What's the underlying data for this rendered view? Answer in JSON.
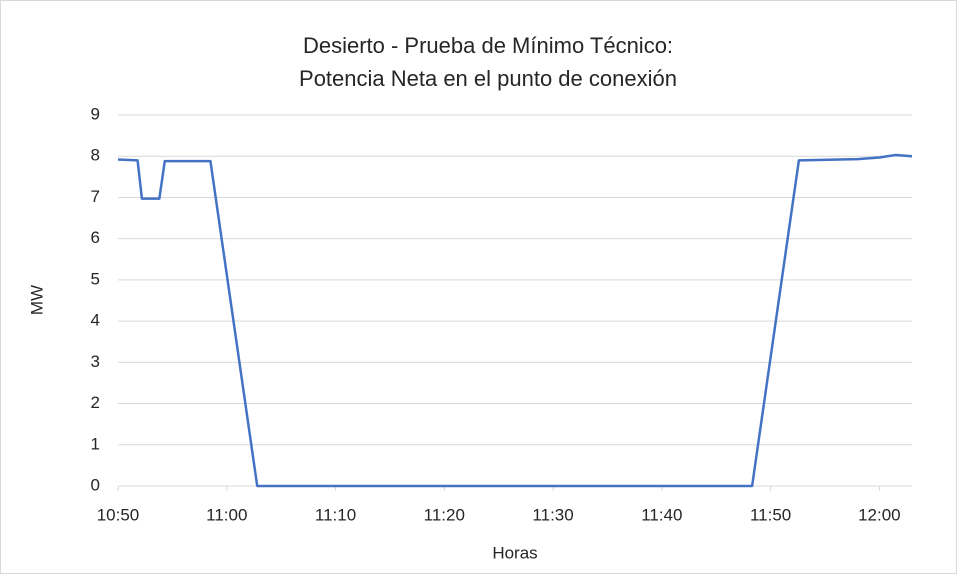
{
  "chart_data": {
    "type": "line",
    "title": [
      "Desierto - Prueba de Mínimo Técnico:",
      "Potencia Neta en el punto de conexión"
    ],
    "x_label": "Horas",
    "y_label": "MW",
    "series": [
      {
        "color": "#4472c4",
        "x": [
          650,
          651.8,
          652.2,
          653.8,
          654.3,
          658.5,
          662.8,
          708.3,
          712.6,
          718,
          720,
          721.5,
          723
        ],
        "values": [
          7.92,
          7.9,
          6.97,
          6.97,
          7.88,
          7.88,
          0,
          0,
          7.9,
          7.93,
          7.97,
          8.03,
          8.0
        ]
      }
    ],
    "xlim": [
      650,
      723
    ],
    "xticks": [
      {
        "value": 650,
        "label": "10:50"
      },
      {
        "value": 660,
        "label": "11:00"
      },
      {
        "value": 670,
        "label": "11:10"
      },
      {
        "value": 680,
        "label": "11:20"
      },
      {
        "value": 690,
        "label": "11:30"
      },
      {
        "value": 700,
        "label": "11:40"
      },
      {
        "value": 710,
        "label": "11:50"
      },
      {
        "value": 720,
        "label": "12:00"
      }
    ],
    "ylim": [
      0,
      9
    ],
    "yticks": [
      0,
      1,
      2,
      3,
      4,
      5,
      6,
      7,
      8,
      9
    ],
    "grid": true
  }
}
